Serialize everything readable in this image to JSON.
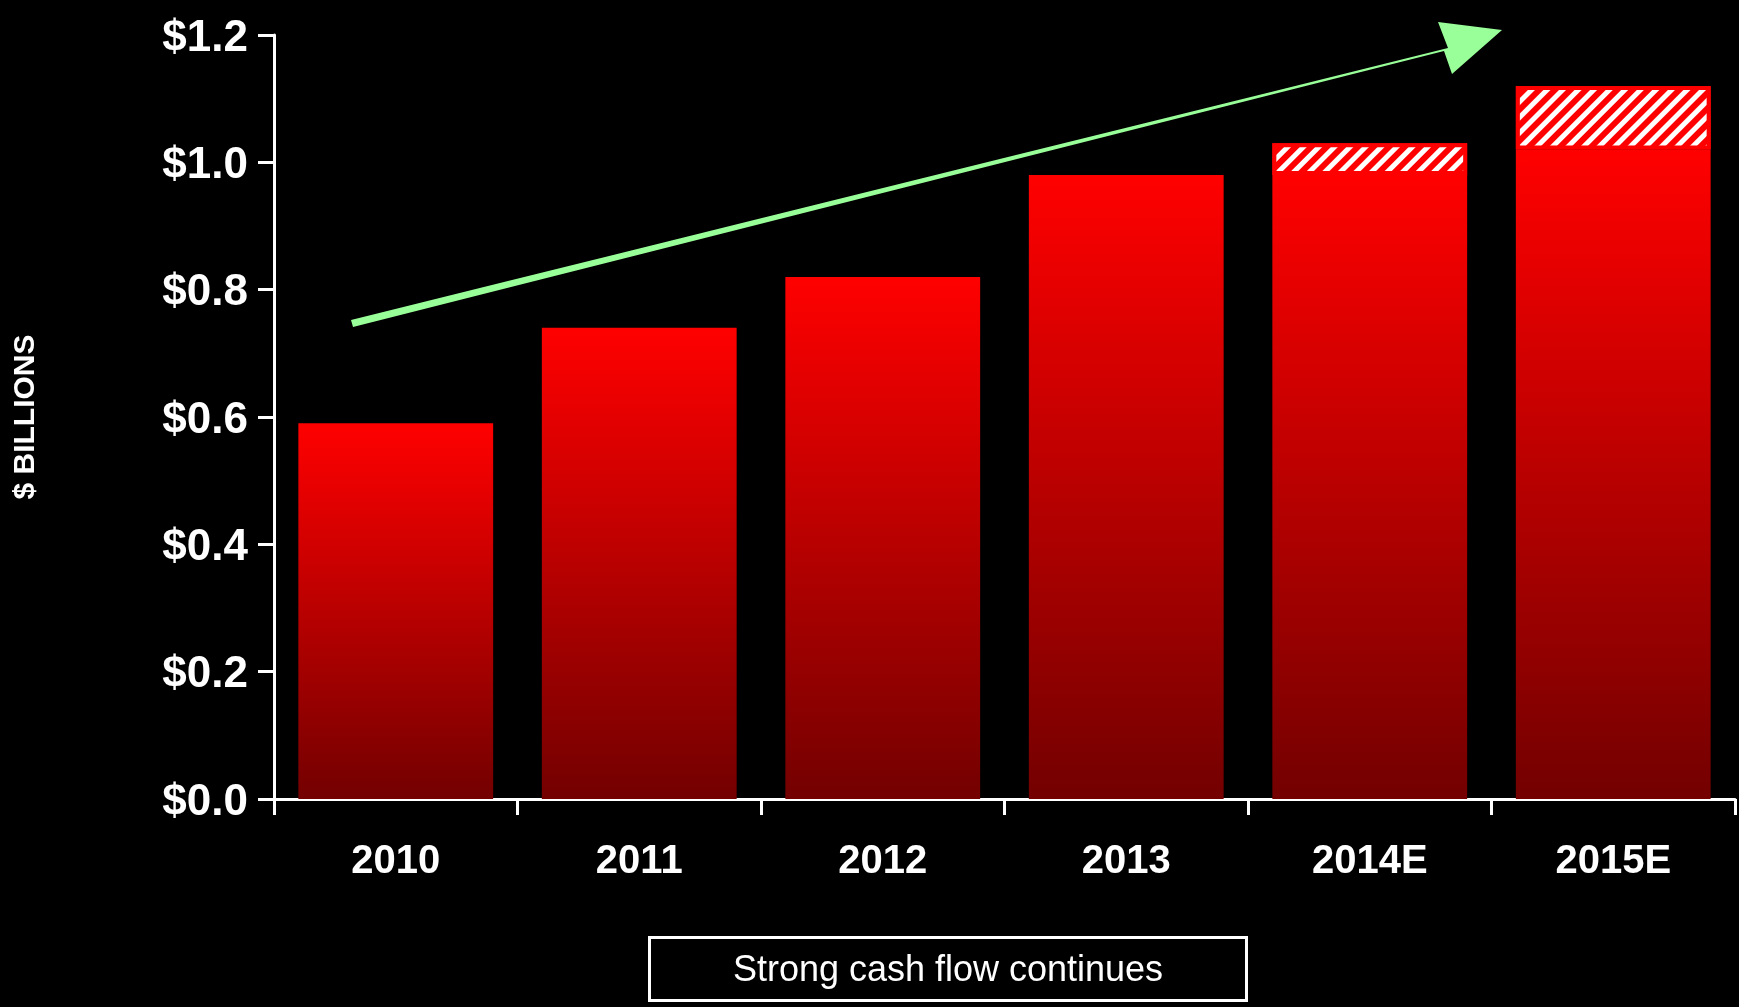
{
  "chart_data": {
    "type": "bar",
    "ylabel": "$ BILLIONS",
    "categories": [
      "2010",
      "2011",
      "2012",
      "2013",
      "2014E",
      "2015E"
    ],
    "series": [
      {
        "color": "#ff0000",
        "values": [
          0.59,
          0.74,
          0.82,
          0.98,
          0.98,
          1.02
        ]
      },
      {
        "color": "#ff0000",
        "values": [
          null,
          null,
          null,
          null,
          0.05,
          0.1
        ]
      }
    ],
    "stacked": true,
    "ylim": [
      0,
      1.2
    ],
    "yticks": [
      {
        "value": 0,
        "label": "$0.0"
      },
      {
        "value": 0.2,
        "label": "$0.2"
      },
      {
        "value": 0.4,
        "label": "$0.4"
      },
      {
        "value": 0.6,
        "label": "$0.6"
      },
      {
        "value": 0.8,
        "label": "$0.8"
      },
      {
        "value": 1.0,
        "label": "$1.0"
      },
      {
        "value": 1.2,
        "label": "$1.2"
      }
    ],
    "grid": false,
    "annotations": [
      "Strong cash flow continues"
    ]
  }
}
